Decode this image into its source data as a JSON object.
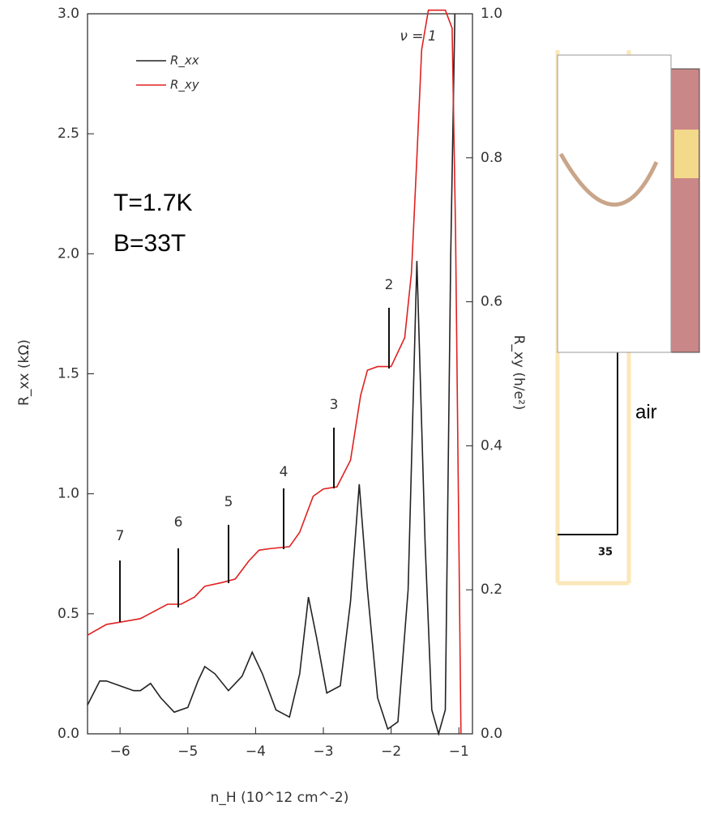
{
  "chart_data": {
    "type": "line",
    "xlabel": "n_H (10^12 cm^-2)",
    "ylabel": "R_xx (kΩ)",
    "y2label": "R_xy (h/e²)",
    "xlim": [
      -6.48,
      -0.8
    ],
    "xticks": [
      {
        "value": -6,
        "label": "−6"
      },
      {
        "value": -5,
        "label": "−5"
      },
      {
        "value": -4,
        "label": "−4"
      },
      {
        "value": -3,
        "label": "−3"
      },
      {
        "value": -2,
        "label": "−2"
      },
      {
        "value": -1,
        "label": "−1"
      }
    ],
    "ylim": [
      0,
      3.0
    ],
    "yticks": [
      {
        "value": 0,
        "label": "0.0"
      },
      0.5,
      {
        "value": 1,
        "label": "1.0"
      },
      1.5,
      {
        "value": 2,
        "label": "2.0"
      },
      2.5,
      {
        "value": 3,
        "label": "3.0"
      }
    ],
    "y2lim": [
      0,
      1.0
    ],
    "y2ticks": [
      {
        "value": 0,
        "label": "0.0"
      },
      0.2,
      0.4,
      0.6,
      0.8,
      {
        "value": 1,
        "label": "1.0"
      }
    ],
    "legend": "upper left",
    "series": [
      {
        "name": "R_xx",
        "color": "#222222",
        "x": [
          -6.48,
          -6.3,
          -6.2,
          -6.0,
          -5.8,
          -5.7,
          -5.55,
          -5.4,
          -5.2,
          -5.0,
          -4.85,
          -4.75,
          -4.6,
          -4.4,
          -4.2,
          -4.05,
          -3.9,
          -3.7,
          -3.5,
          -3.35,
          -3.22,
          -3.1,
          -2.95,
          -2.75,
          -2.6,
          -2.47,
          -2.35,
          -2.2,
          -2.05,
          -1.9,
          -1.75,
          -1.62,
          -1.5,
          -1.4,
          -1.3,
          -1.2,
          -1.12,
          -1.06
        ],
        "values": [
          0.12,
          0.22,
          0.22,
          0.2,
          0.18,
          0.18,
          0.21,
          0.15,
          0.09,
          0.11,
          0.22,
          0.28,
          0.25,
          0.18,
          0.24,
          0.34,
          0.25,
          0.1,
          0.07,
          0.25,
          0.57,
          0.4,
          0.17,
          0.2,
          0.55,
          1.04,
          0.6,
          0.15,
          0.02,
          0.05,
          0.6,
          1.97,
          0.8,
          0.1,
          0.0,
          0.1,
          2.0,
          3.0
        ]
      },
      {
        "name": "R_xy",
        "color": "#e02020",
        "axis": "y2",
        "x": [
          -6.48,
          -6.2,
          -6.0,
          -5.7,
          -5.5,
          -5.3,
          -5.1,
          -4.9,
          -4.75,
          -4.5,
          -4.3,
          -4.1,
          -3.95,
          -3.8,
          -3.5,
          -3.35,
          -3.15,
          -3.0,
          -2.8,
          -2.6,
          -2.45,
          -2.35,
          -2.2,
          -2.0,
          -1.8,
          -1.7,
          -1.62,
          -1.55,
          -1.45,
          -1.2,
          -1.1,
          -1.05,
          -0.97
        ],
        "values": [
          0.137,
          0.152,
          0.155,
          0.16,
          0.17,
          0.18,
          0.18,
          0.19,
          0.205,
          0.21,
          0.215,
          0.24,
          0.255,
          0.257,
          0.26,
          0.28,
          0.33,
          0.34,
          0.343,
          0.38,
          0.47,
          0.505,
          0.51,
          0.51,
          0.55,
          0.64,
          0.8,
          0.95,
          1.005,
          1.005,
          0.98,
          0.7,
          0.0
        ]
      }
    ],
    "annotations": [
      "T=1.7K",
      "B=33T",
      "ν = 1",
      "2",
      "3",
      "4",
      "5",
      "6",
      "7",
      "air",
      "35"
    ]
  }
}
